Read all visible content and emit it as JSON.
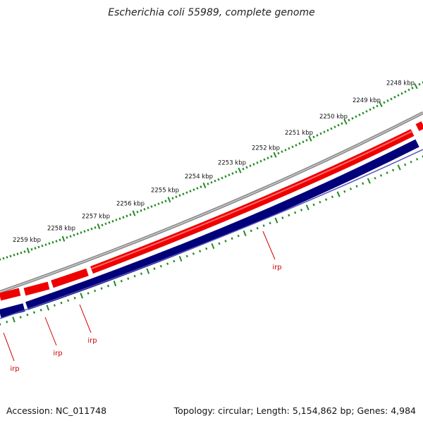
{
  "title": "Escherichia coli 55989, complete genome",
  "footer": {
    "accession": "Accession: NC_011748",
    "summary": "Topology: circular; Length: 5,154,862 bp; Genes: 4,984"
  },
  "colors": {
    "backbone": "#8c8c8c",
    "forward_strand": "#ee0000",
    "reverse_strand": "#00007a",
    "reverse_edge": "#5555bb",
    "ticks": "#228b22",
    "gene_label": "#cc0000"
  },
  "scale_labels": [
    "2248 kbp",
    "2249 kbp",
    "2250 kbp",
    "2251 kbp",
    "2252 kbp",
    "2253 kbp",
    "2254 kbp",
    "2255 kbp",
    "2256 kbp",
    "2257 kbp",
    "2258 kbp",
    "2259 kbp"
  ],
  "gene_labels": [
    "irp",
    "irp",
    "irp",
    "irp"
  ]
}
